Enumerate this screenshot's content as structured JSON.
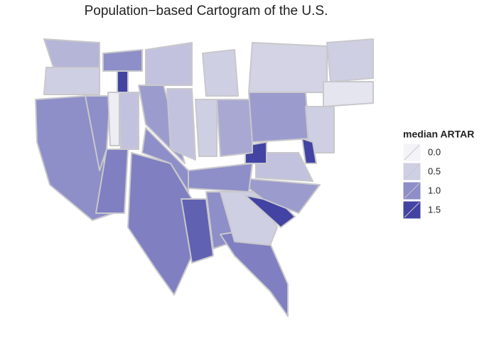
{
  "chart_data": {
    "type": "choropleth",
    "title": "Population−based Cartogram of the U.S.",
    "values": [
      0.7,
      0.5,
      1.0,
      1.0,
      0.1,
      1.6,
      1.1,
      0.6,
      1.1,
      1.0,
      0.9,
      1.3,
      1.0,
      1.1,
      0.5,
      1.5,
      0.9,
      0.6,
      1.0,
      1.5,
      0.6,
      0.5,
      0.8,
      0.9,
      0.5,
      0.6,
      0.45,
      0.2,
      0.5,
      0.5,
      1.5,
      1.0
    ],
    "legend": {
      "title": "median ARTAR",
      "ticks": [
        {
          "value": 0,
          "label": "0.0"
        },
        0.5,
        {
          "value": 1,
          "label": "1.0"
        },
        1.5
      ],
      "colors": [
        "#f4f4f8",
        "#cfcfe3",
        "#8e8ec8",
        "#4343a3"
      ]
    }
  }
}
